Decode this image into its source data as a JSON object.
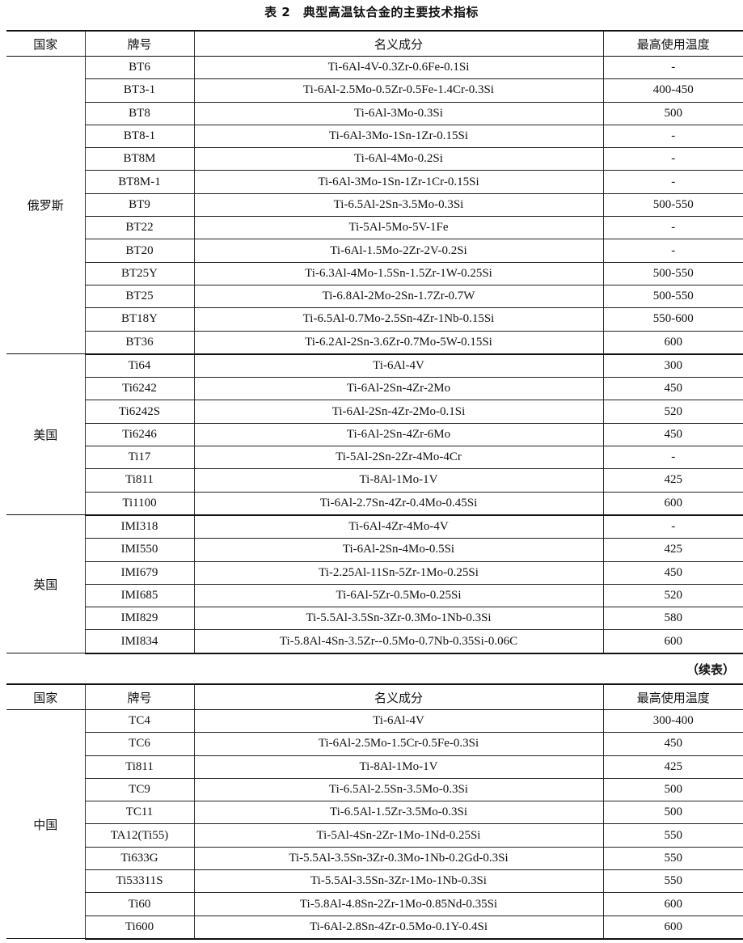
{
  "title": "表 2　典型高温钛合金的主要技术指标",
  "columns": [
    "国家",
    "牌号",
    "名义成分",
    "最高使用温度"
  ],
  "continued_label": "（续表）",
  "table1": [
    {
      "country": "俄罗斯",
      "rows": [
        [
          "BT6",
          "Ti-6Al-4V-0.3Zr-0.6Fe-0.1Si",
          "-"
        ],
        [
          "BT3-1",
          "Ti-6Al-2.5Mo-0.5Zr-0.5Fe-1.4Cr-0.3Si",
          "400-450"
        ],
        [
          "BT8",
          "Ti-6Al-3Mo-0.3Si",
          "500"
        ],
        [
          "BT8-1",
          "Ti-6Al-3Mo-1Sn-1Zr-0.15Si",
          "-"
        ],
        [
          "BT8M",
          "Ti-6Al-4Mo-0.2Si",
          "-"
        ],
        [
          "BT8M-1",
          "Ti-6Al-3Mo-1Sn-1Zr-1Cr-0.15Si",
          "-"
        ],
        [
          "BT9",
          "Ti-6.5Al-2Sn-3.5Mo-0.3Si",
          "500-550"
        ],
        [
          "BT22",
          "Ti-5Al-5Mo-5V-1Fe",
          "-"
        ],
        [
          "BT20",
          "Ti-6Al-1.5Mo-2Zr-2V-0.2Si",
          "-"
        ],
        [
          "BT25Y",
          "Ti-6.3Al-4Mo-1.5Sn-1.5Zr-1W-0.25Si",
          "500-550"
        ],
        [
          "BT25",
          "Ti-6.8Al-2Mo-2Sn-1.7Zr-0.7W",
          "500-550"
        ],
        [
          "BT18Y",
          "Ti-6.5Al-0.7Mo-2.5Sn-4Zr-1Nb-0.15Si",
          "550-600"
        ],
        [
          "BT36",
          "Ti-6.2Al-2Sn-3.6Zr-0.7Mo-5W-0.15Si",
          "600"
        ]
      ]
    },
    {
      "country": "美国",
      "rows": [
        [
          "Ti64",
          "Ti-6Al-4V",
          "300"
        ],
        [
          "Ti6242",
          "Ti-6Al-2Sn-4Zr-2Mo",
          "450"
        ],
        [
          "Ti6242S",
          "Ti-6Al-2Sn-4Zr-2Mo-0.1Si",
          "520"
        ],
        [
          "Ti6246",
          "Ti-6Al-2Sn-4Zr-6Mo",
          "450"
        ],
        [
          "Ti17",
          "Ti-5Al-2Sn-2Zr-4Mo-4Cr",
          "-"
        ],
        [
          "Ti811",
          "Ti-8Al-1Mo-1V",
          "425"
        ],
        [
          "Ti1100",
          "Ti-6Al-2.7Sn-4Zr-0.4Mo-0.45Si",
          "600"
        ]
      ]
    },
    {
      "country": "英国",
      "rows": [
        [
          "IMI318",
          "Ti-6Al-4Zr-4Mo-4V",
          "-"
        ],
        [
          "IMI550",
          "Ti-6Al-2Sn-4Mo-0.5Si",
          "425"
        ],
        [
          "IMI679",
          "Ti-2.25Al-11Sn-5Zr-1Mo-0.25Si",
          "450"
        ],
        [
          "IMI685",
          "Ti-6Al-5Zr-0.5Mo-0.25Si",
          "520"
        ],
        [
          "IMI829",
          "Ti-5.5Al-3.5Sn-3Zr-0.3Mo-1Nb-0.3Si",
          "580"
        ],
        [
          "IMI834",
          "Ti-5.8Al-4Sn-3.5Zr--0.5Mo-0.7Nb-0.35Si-0.06C",
          "600"
        ]
      ]
    }
  ],
  "table2": [
    {
      "country": "中国",
      "rows": [
        [
          "TC4",
          "Ti-6Al-4V",
          "300-400"
        ],
        [
          "TC6",
          "Ti-6Al-2.5Mo-1.5Cr-0.5Fe-0.3Si",
          "450"
        ],
        [
          "Ti811",
          "Ti-8Al-1Mo-1V",
          "425"
        ],
        [
          "TC9",
          "Ti-6.5Al-2.5Sn-3.5Mo-0.3Si",
          "500"
        ],
        [
          "TC11",
          "Ti-6.5Al-1.5Zr-3.5Mo-0.3Si",
          "500"
        ],
        [
          "TA12(Ti55)",
          "Ti-5Al-4Sn-2Zr-1Mo-1Nd-0.25Si",
          "550"
        ],
        [
          "Ti633G",
          "Ti-5.5Al-3.5Sn-3Zr-0.3Mo-1Nb-0.2Gd-0.3Si",
          "550"
        ],
        [
          "Ti53311S",
          "Ti-5.5Al-3.5Sn-3Zr-1Mo-1Nb-0.3Si",
          "550"
        ],
        [
          "Ti60",
          "Ti-5.8Al-4.8Sn-2Zr-1Mo-0.85Nd-0.35Si",
          "600"
        ],
        [
          "Ti600",
          "Ti-6Al-2.8Sn-4Zr-0.5Mo-0.1Y-0.4Si",
          "600"
        ]
      ]
    }
  ]
}
